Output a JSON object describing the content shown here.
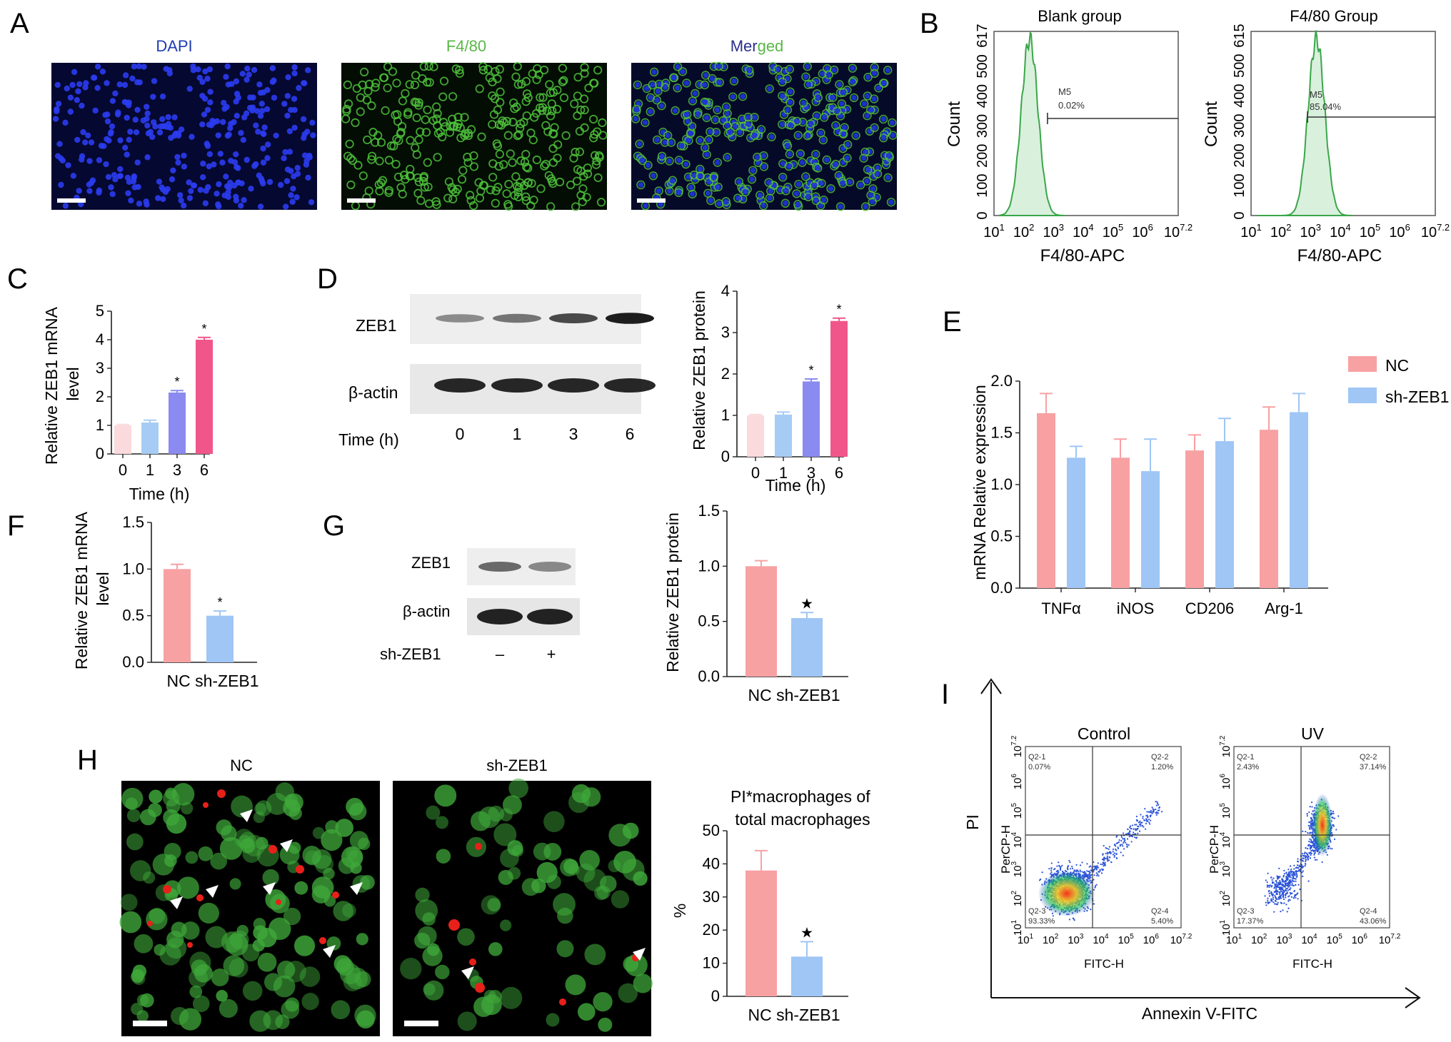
{
  "panel_letters": {
    "A": "A",
    "B": "B",
    "C": "C",
    "D": "D",
    "E": "E",
    "F": "F",
    "G": "G",
    "H": "H",
    "I": "I"
  },
  "panel_A": {
    "titles": {
      "dapi": "DAPI",
      "f480": "F4/80",
      "merged_a": "Mer",
      "merged_b": "ged"
    },
    "colors": {
      "dapi_title": "#1e3cb4",
      "f480_title": "#58b845",
      "merged_a": "#2a2f8a",
      "merged_b": "#58b845"
    }
  },
  "panel_B": {
    "plots": [
      {
        "title": "Blank group",
        "ytop": "617",
        "yticks": [
          "0",
          "100",
          "200",
          "300",
          "400",
          "500"
        ],
        "marker": "M5",
        "percent": "0.02%",
        "peak_log": 2.2,
        "gate_start_log": 2.8
      },
      {
        "title": "F4/80 Group",
        "ytop": "615",
        "yticks": [
          "0",
          "100",
          "200",
          "300",
          "400",
          "500"
        ],
        "marker": "M5",
        "percent": "85.04%",
        "peak_log": 3.2,
        "gate_start_log": 2.9
      }
    ],
    "xticks": [
      "10^1",
      "10^2",
      "10^3",
      "10^4",
      "10^5",
      "10^6",
      "10^7.2"
    ],
    "ylabel": "Count",
    "xlabel": "F4/80-APC"
  },
  "panel_C": {
    "ylabel_line1": "Relative ZEB1 mRNA",
    "ylabel_line2": "level",
    "xlabel": "Time (h)",
    "yticks": [
      "0",
      "1",
      "2",
      "3",
      "4",
      "5"
    ]
  },
  "panel_D": {
    "blot_labels": {
      "zeb1": "ZEB1",
      "actin": "β-actin",
      "time": "Time (h)",
      "t0": "0",
      "t1": "1",
      "t3": "3",
      "t6": "6"
    },
    "ylabel": "Relative ZEB1 protein",
    "xlabel": "Time (h)",
    "yticks": [
      "0",
      "1",
      "2",
      "3",
      "4"
    ]
  },
  "panel_E": {
    "ylabel": "mRNA Relative expression",
    "yticks": [
      "0.0",
      "0.5",
      "1.0",
      "1.5",
      "2.0"
    ],
    "legend": {
      "nc": "NC",
      "sh": "sh-ZEB1"
    }
  },
  "panel_F": {
    "ylabel_line1": "Relative ZEB1 mRNA",
    "ylabel_line2": "level",
    "yticks": [
      "0.0",
      "0.5",
      "1.0",
      "1.5"
    ],
    "xlabel": "NC sh-ZEB1"
  },
  "panel_G": {
    "blot_labels": {
      "zeb1": "ZEB1",
      "actin": "β-actin",
      "sh": "sh-ZEB1",
      "minus": "–",
      "plus": "+"
    },
    "ylabel": "Relative ZEB1 protein",
    "yticks": [
      "0.0",
      "0.5",
      "1.0",
      "1.5"
    ],
    "xlabel": "NC sh-ZEB1"
  },
  "panel_H": {
    "titles": {
      "nc": "NC",
      "sh": "sh-ZEB1"
    },
    "chart_title_line1": "PI*macrophages of",
    "chart_title_line2": "total macrophages",
    "ylabel": "%",
    "yticks": [
      "0",
      "10",
      "20",
      "30",
      "40",
      "50"
    ],
    "xlabel": "NC sh-ZEB1"
  },
  "panel_I": {
    "ylabel": "PI",
    "xlabel": "Annexin V-FITC",
    "axis_y": "PerCP-H",
    "axis_x": "FITC-H",
    "xticks": [
      "10^1",
      "10^2",
      "10^3",
      "10^4",
      "10^5",
      "10^6",
      "10^7.2"
    ],
    "yticks": [
      "10^1",
      "10^2",
      "10^3",
      "10^4",
      "10^5",
      "10^6",
      "10^7.2"
    ],
    "plots": [
      {
        "title": "Control",
        "q21": "Q2-1",
        "p21": "0.07%",
        "q22": "Q2-2",
        "p22": "1.20%",
        "q23": "Q2-3",
        "p23": "93.33%",
        "q24": "Q2-4",
        "p24": "5.40%"
      },
      {
        "title": "UV",
        "q21": "Q2-1",
        "p21": "2.43%",
        "q22": "Q2-2",
        "p22": "37.14%",
        "q23": "Q2-3",
        "p23": "17.37%",
        "q24": "Q2-4",
        "p24": "43.06%"
      }
    ]
  },
  "chart_data": [
    {
      "type": "bar",
      "panel": "C",
      "categories": [
        "0",
        "1",
        "3",
        "6"
      ],
      "values": [
        1.0,
        1.1,
        2.15,
        4.0
      ],
      "errors": [
        0.03,
        0.08,
        0.07,
        0.08
      ],
      "significance": [
        "",
        "",
        "*",
        "*"
      ],
      "ylim": [
        0,
        5
      ],
      "xlabel": "Time (h)",
      "ylabel": "Relative ZEB1 mRNA level",
      "colors": [
        "#fadadd",
        "#a6ccf5",
        "#8a8af0",
        "#f0568a"
      ]
    },
    {
      "type": "bar",
      "panel": "D",
      "categories": [
        "0",
        "1",
        "3",
        "6"
      ],
      "values": [
        1.0,
        1.02,
        1.82,
        3.28
      ],
      "errors": [
        0.02,
        0.06,
        0.06,
        0.07
      ],
      "significance": [
        "",
        "",
        "*",
        "*"
      ],
      "ylim": [
        0,
        4
      ],
      "xlabel": "Time (h)",
      "ylabel": "Relative ZEB1 protein",
      "colors": [
        "#fadadd",
        "#a6ccf5",
        "#8a8af0",
        "#f0568a"
      ]
    },
    {
      "type": "bar",
      "panel": "E",
      "categories": [
        "TNFα",
        "iNOS",
        "CD206",
        "Arg-1"
      ],
      "series": [
        {
          "name": "NC",
          "values": [
            1.69,
            1.26,
            1.33,
            1.53
          ],
          "errors": [
            0.19,
            0.18,
            0.15,
            0.22
          ],
          "color": "#f7a1a3"
        },
        {
          "name": "sh-ZEB1",
          "values": [
            1.26,
            1.13,
            1.42,
            1.7
          ],
          "errors": [
            0.11,
            0.31,
            0.22,
            0.18
          ],
          "color": "#9fc6f5"
        }
      ],
      "ylim": [
        0,
        2.0
      ],
      "ylabel": "mRNA Relative expression"
    },
    {
      "type": "bar",
      "panel": "F",
      "categories": [
        "NC",
        "sh-ZEB1"
      ],
      "values": [
        1.0,
        0.5
      ],
      "errors": [
        0.05,
        0.05
      ],
      "significance": [
        "",
        "*"
      ],
      "ylim": [
        0,
        1.5
      ],
      "ylabel": "Relative ZEB1 mRNA level",
      "colors": [
        "#f7a1a3",
        "#9fc6f5"
      ]
    },
    {
      "type": "bar",
      "panel": "G",
      "categories": [
        "NC",
        "sh-ZEB1"
      ],
      "values": [
        1.0,
        0.53
      ],
      "errors": [
        0.05,
        0.05
      ],
      "significance": [
        "",
        "★"
      ],
      "ylim": [
        0,
        1.5
      ],
      "ylabel": "Relative ZEB1 protein",
      "colors": [
        "#f7a1a3",
        "#9fc6f5"
      ]
    },
    {
      "type": "bar",
      "panel": "H",
      "categories": [
        "NC",
        "sh-ZEB1"
      ],
      "values": [
        38,
        12
      ],
      "errors": [
        6,
        4.5
      ],
      "significance": [
        "",
        "★"
      ],
      "ylim": [
        0,
        50
      ],
      "ylabel": "%",
      "title": "PI*macrophages of total macrophages",
      "colors": [
        "#f7a1a3",
        "#9fc6f5"
      ]
    }
  ]
}
